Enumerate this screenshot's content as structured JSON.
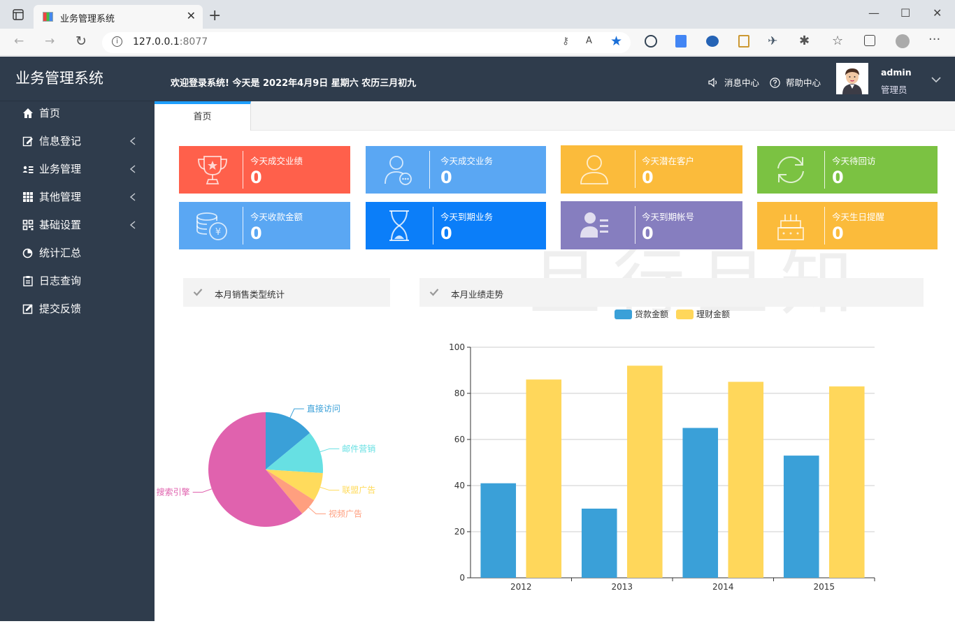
{
  "browser": {
    "tab_title": "业务管理系统",
    "url_host": "127.0.0.1",
    "url_port": ":8077"
  },
  "app": {
    "logo": "业务管理系统",
    "welcome": "欢迎登录系统!   今天是 2022年4月9日 星期六 农历三月初九",
    "message_center": "消息中心",
    "help_center": "帮助中心",
    "user": {
      "name": "admin",
      "role": "管理员"
    }
  },
  "sidebar": {
    "items": [
      {
        "label": "首页",
        "icon": "home-icon",
        "has_children": false
      },
      {
        "label": "信息登记",
        "icon": "edit-icon",
        "has_children": true
      },
      {
        "label": "业务管理",
        "icon": "id-card-icon",
        "has_children": true
      },
      {
        "label": "其他管理",
        "icon": "grid-icon",
        "has_children": true
      },
      {
        "label": "基础设置",
        "icon": "qrcode-icon",
        "has_children": true
      },
      {
        "label": "统计汇总",
        "icon": "pie-icon",
        "has_children": false
      },
      {
        "label": "日志查询",
        "icon": "clipboard-icon",
        "has_children": false
      },
      {
        "label": "提交反馈",
        "icon": "pencil-square-icon",
        "has_children": false
      }
    ]
  },
  "tabs": {
    "home": "首页"
  },
  "cards": [
    {
      "label": "今天成交业绩",
      "value": "0",
      "color": "#ff604b",
      "icon": "trophy-icon"
    },
    {
      "label": "今天成交业务",
      "value": "0",
      "color": "#5aa7f3",
      "icon": "user-chat-icon"
    },
    {
      "label": "今天潜在客户",
      "value": "0",
      "color": "#fbbb3b",
      "icon": "user-icon"
    },
    {
      "label": "今天待回访",
      "value": "0",
      "color": "#7bc242",
      "icon": "refresh-icon"
    },
    {
      "label": "今天收款金额",
      "value": "0",
      "color": "#5aa7f3",
      "icon": "coins-icon"
    },
    {
      "label": "今天到期业务",
      "value": "0",
      "color": "#0b7ef9",
      "icon": "hourglass-icon"
    },
    {
      "label": "今天到期帐号",
      "value": "0",
      "color": "#867ebf",
      "icon": "user-list-icon"
    },
    {
      "label": "今天生日提醒",
      "value": "0",
      "color": "#fbbb3b",
      "icon": "cake-icon"
    }
  ],
  "watermark": "且行且知",
  "panels": {
    "pie_title": "本月销售类型统计",
    "bar_title": "本月业绩走势"
  },
  "chart_data": [
    {
      "type": "pie",
      "slices": [
        {
          "name": "直接访问",
          "value": 14,
          "color": "#3aa0d8"
        },
        {
          "name": "邮件营销",
          "value": 12,
          "color": "#67e0e3"
        },
        {
          "name": "联盟广告",
          "value": 8,
          "color": "#ffdb5c"
        },
        {
          "name": "视频广告",
          "value": 5,
          "color": "#ff9f7f"
        },
        {
          "name": "搜索引擎",
          "value": 61,
          "color": "#e062ae"
        }
      ]
    },
    {
      "type": "bar",
      "categories": [
        "2012",
        "2013",
        "2014",
        "2015"
      ],
      "series": [
        {
          "name": "贷款金额",
          "values": [
            41,
            30,
            65,
            53
          ],
          "color": "#3aa0d8"
        },
        {
          "name": "理财金额",
          "values": [
            86,
            92,
            85,
            83
          ],
          "color": "#ffd75b"
        }
      ],
      "ylim": [
        0,
        100
      ],
      "yticks": [
        0,
        20,
        40,
        60,
        80,
        100
      ],
      "grid": true,
      "legend": "top"
    }
  ]
}
